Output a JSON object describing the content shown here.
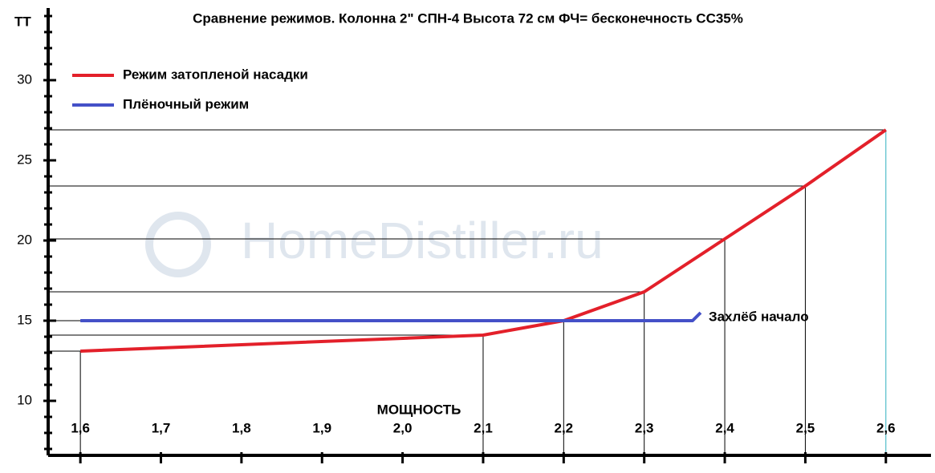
{
  "chart_data": {
    "type": "line",
    "title": "Сравнение режимов. Колонна 2\" СПН-4 Высота 72 см  ФЧ=  бесконечность    СС35%",
    "y_label": "ТТ",
    "x_label": "МОЩНОСТЬ",
    "watermark": "HomeDistiller.ru",
    "annotation": "Захлёб начало",
    "series": [
      {
        "name": "Режим затопленой насадки",
        "color": "#e3202a",
        "x": [
          1.6,
          2.1,
          2.2,
          2.3,
          2.4,
          2.5,
          2.6
        ],
        "values": [
          13.1,
          14.1,
          15.0,
          16.8,
          20.1,
          23.4,
          26.9
        ]
      },
      {
        "name": "Плёночный режим",
        "color": "#4450c8",
        "x": [
          1.6,
          2.36,
          2.37
        ],
        "values": [
          15,
          15,
          15.5
        ]
      }
    ],
    "xlim": [
      1.56,
      2.656
    ],
    "ylim": [
      6.6,
      34.5
    ],
    "xticks": [
      {
        "value": 1.6,
        "label": "1,6"
      },
      {
        "value": 1.7,
        "label": "1,7"
      },
      {
        "value": 1.8,
        "label": "1,8"
      },
      {
        "value": 1.9,
        "label": "1,9"
      },
      {
        "value": 2.0,
        "label": "2,0"
      },
      {
        "value": 2.1,
        "label": "2,1"
      },
      {
        "value": 2.2,
        "label": "2,2"
      },
      {
        "value": 2.3,
        "label": "2,3"
      },
      {
        "value": 2.4,
        "label": "2,4"
      },
      {
        "value": 2.5,
        "label": "2,5"
      },
      {
        "value": 2.6,
        "label": "2,6"
      }
    ],
    "yticks": [
      10,
      15,
      20,
      25,
      30
    ],
    "y_minor_ticks": [
      7,
      8,
      9,
      11,
      12,
      13,
      14,
      16,
      17,
      18,
      19,
      21,
      22,
      23,
      24,
      26,
      27,
      28,
      29,
      31,
      32,
      33,
      34
    ],
    "drop_lines": true,
    "legend": "top-left"
  }
}
